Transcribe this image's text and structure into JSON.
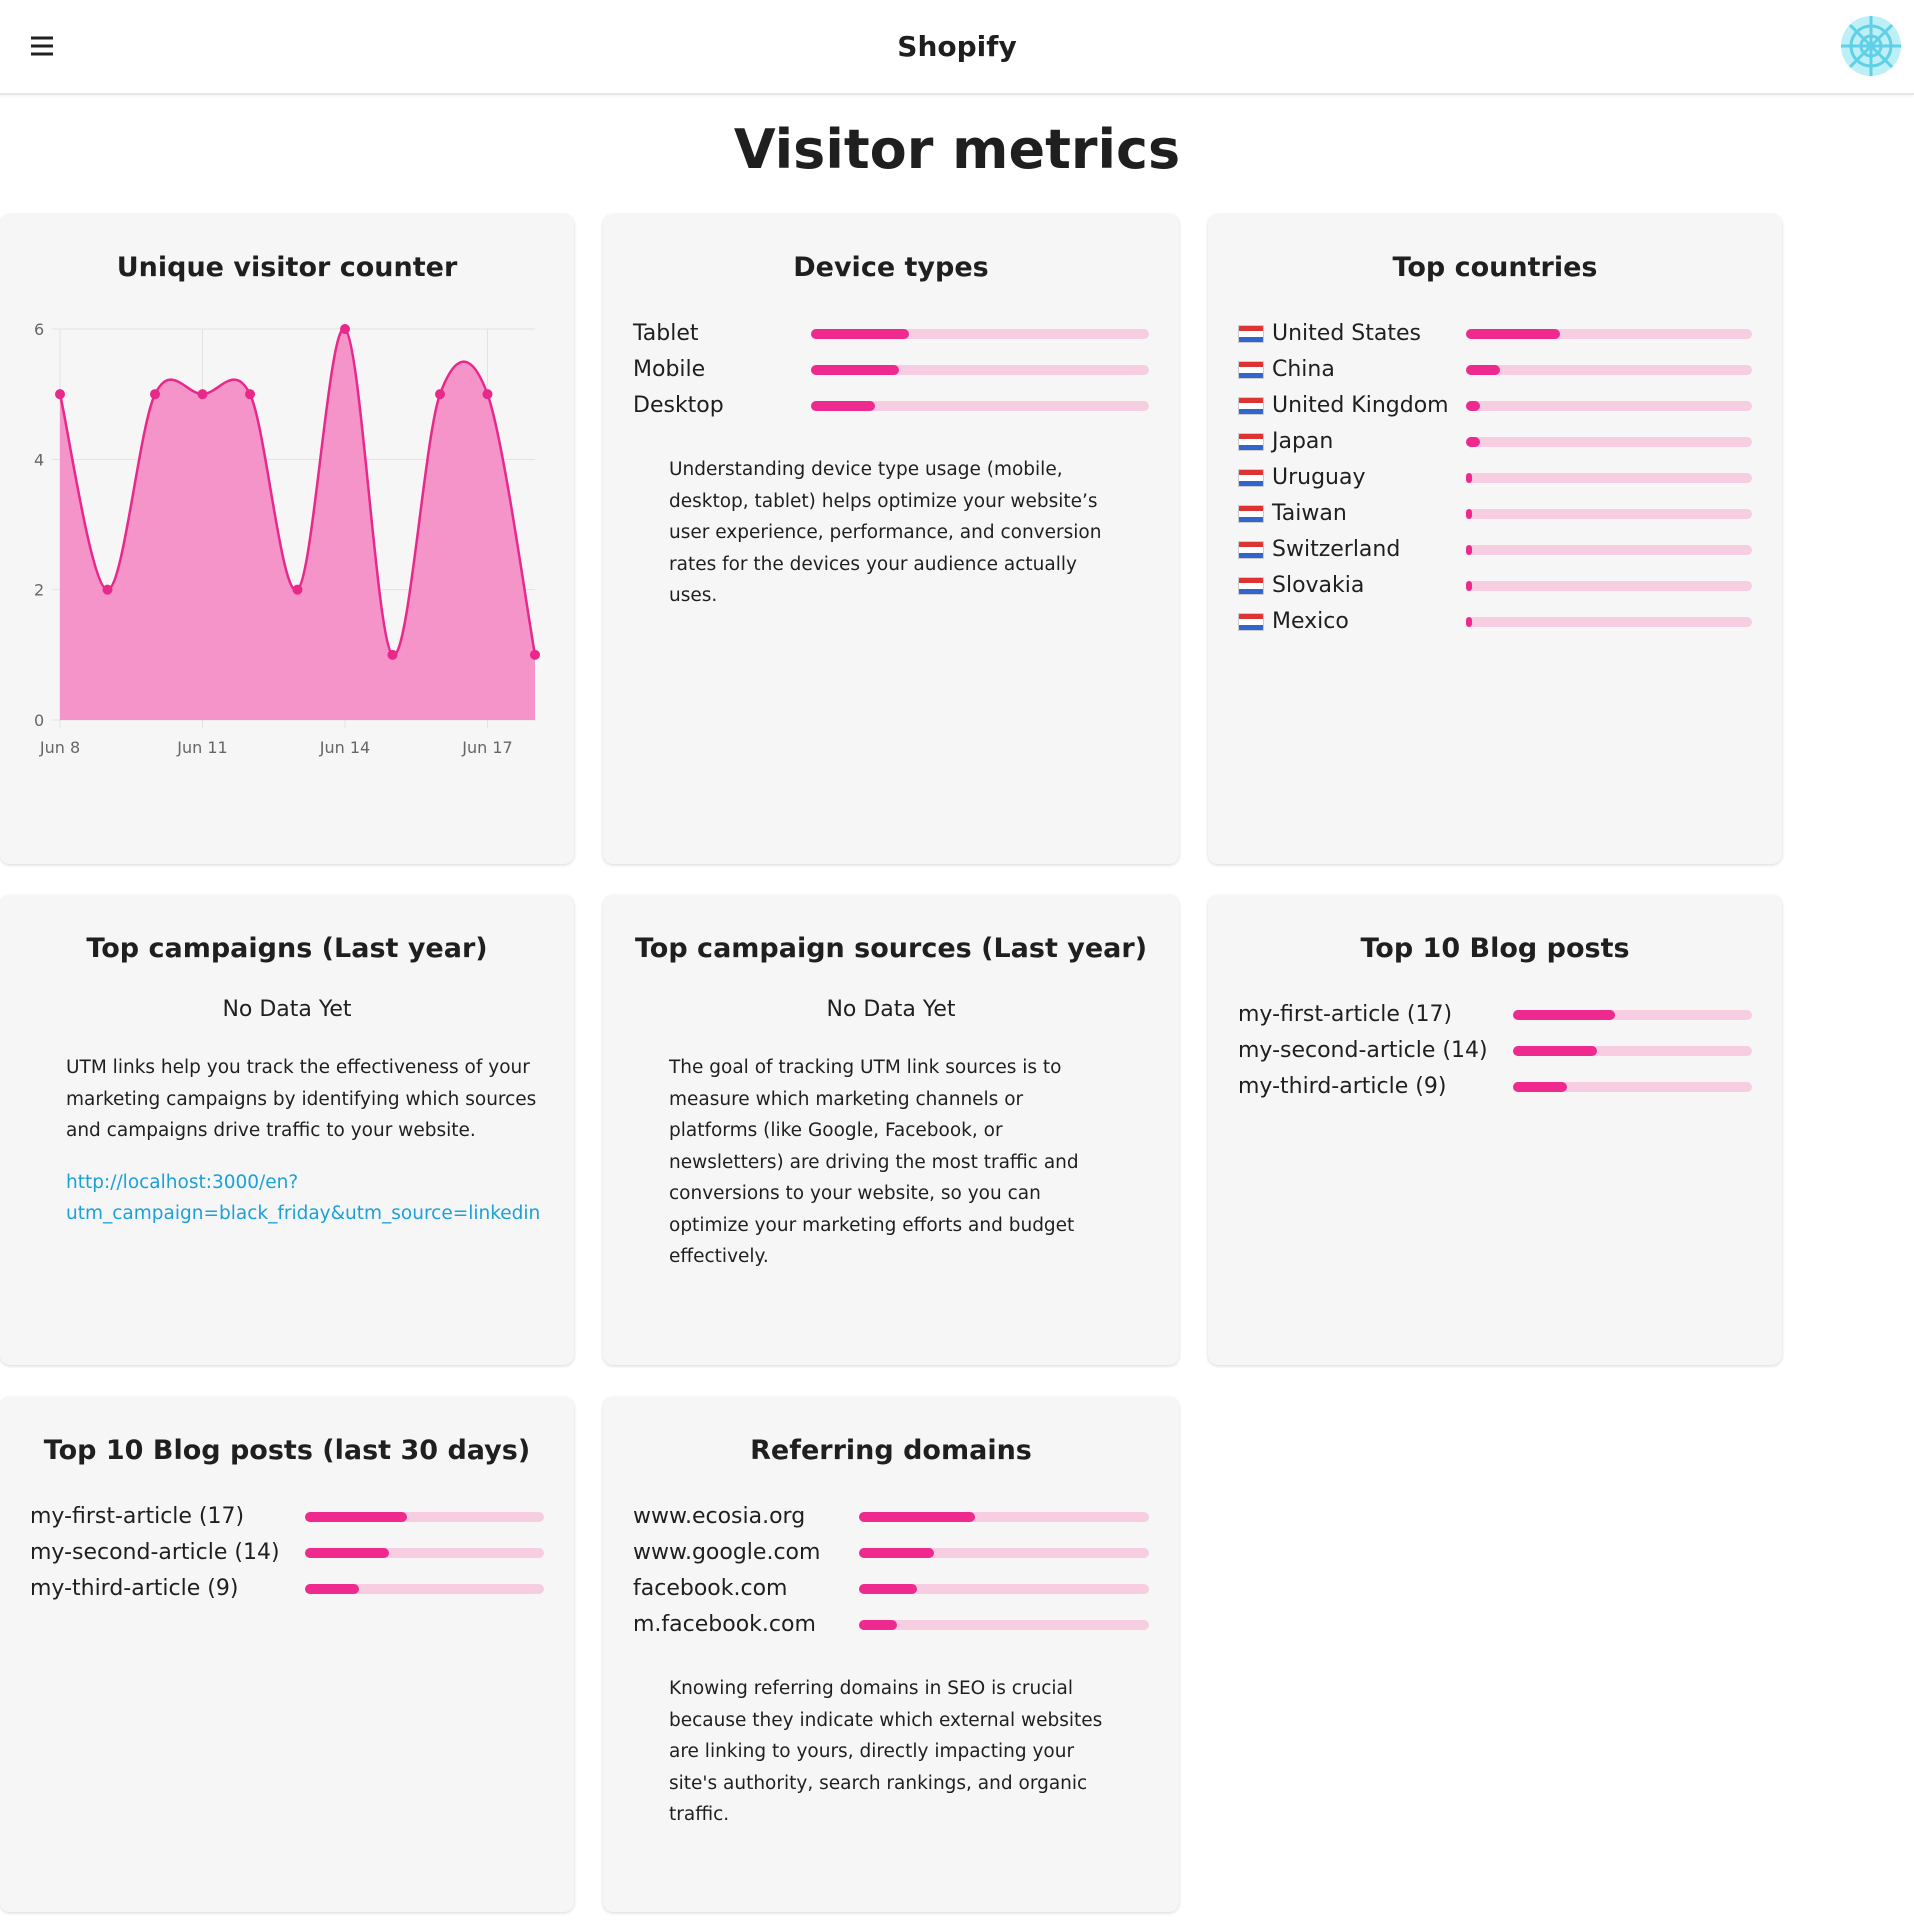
{
  "header": {
    "title": "Shopify"
  },
  "heading": "Visitor metrics",
  "chart_data": {
    "type": "line",
    "title": "Unique visitor counter",
    "categories": [
      "Jun 8",
      null,
      null,
      "Jun 11",
      null,
      null,
      "Jun 14",
      null,
      null,
      "Jun 17",
      null
    ],
    "values": [
      5,
      2,
      5,
      5,
      5,
      2,
      6,
      1,
      5,
      5,
      1
    ],
    "color": "#e8288a",
    "ylim": [
      0,
      6
    ],
    "yticks": [
      0,
      2,
      4,
      6
    ],
    "grid": true
  },
  "device_types": {
    "title": "Device types",
    "items": [
      {
        "label": "Tablet",
        "value": 29
      },
      {
        "label": "Mobile",
        "value": 26
      },
      {
        "label": "Desktop",
        "value": 19
      }
    ],
    "description": "Understanding device type usage (mobile, desktop, tablet) helps optimize your website’s user experience, performance, and conversion rates for the devices your audience actually uses."
  },
  "top_countries": {
    "title": "Top countries",
    "items": [
      {
        "label": "United States",
        "value": 33
      },
      {
        "label": "China",
        "value": 12
      },
      {
        "label": "United Kingdom",
        "value": 5
      },
      {
        "label": "Japan",
        "value": 5
      },
      {
        "label": "Uruguay",
        "value": 2
      },
      {
        "label": "Taiwan",
        "value": 2
      },
      {
        "label": "Switzerland",
        "value": 2
      },
      {
        "label": "Slovakia",
        "value": 2
      },
      {
        "label": "Mexico",
        "value": 2
      }
    ]
  },
  "top_campaigns": {
    "title": "Top campaigns (Last year)",
    "empty": "No Data Yet",
    "description": "UTM links help you track the effectiveness of your marketing campaigns by identifying which sources and campaigns drive traffic to your website.",
    "link": "http://localhost:3000/en?utm_campaign=black_friday&utm_source=linkedin"
  },
  "top_campaign_sources": {
    "title": "Top campaign sources (Last year)",
    "empty": "No Data Yet",
    "description": "The goal of tracking UTM link sources is to measure which marketing channels or platforms (like Google, Facebook, or newsletters) are driving the most traffic and conversions to your website, so you can optimize your marketing efforts and budget effectively."
  },
  "blog_posts": {
    "title": "Top 10 Blog posts",
    "items": [
      {
        "label": "my-first-article (17)",
        "value": 17
      },
      {
        "label": "my-second-article (14)",
        "value": 14
      },
      {
        "label": "my-third-article (9)",
        "value": 9
      }
    ]
  },
  "blog_posts_30d": {
    "title": "Top 10 Blog posts (last 30 days)",
    "items": [
      {
        "label": "my-first-article (17)",
        "value": 17
      },
      {
        "label": "my-second-article (14)",
        "value": 14
      },
      {
        "label": "my-third-article (9)",
        "value": 9
      }
    ]
  },
  "referring_domains": {
    "title": "Referring domains",
    "items": [
      {
        "label": "www.ecosia.org",
        "value": 40
      },
      {
        "label": "www.google.com",
        "value": 26
      },
      {
        "label": "facebook.com",
        "value": 20
      },
      {
        "label": "m.facebook.com",
        "value": 13
      }
    ],
    "description": "Knowing referring domains in SEO is crucial because they indicate which external websites are linking to yours, directly impacting your site's authority, search rankings, and organic traffic."
  }
}
